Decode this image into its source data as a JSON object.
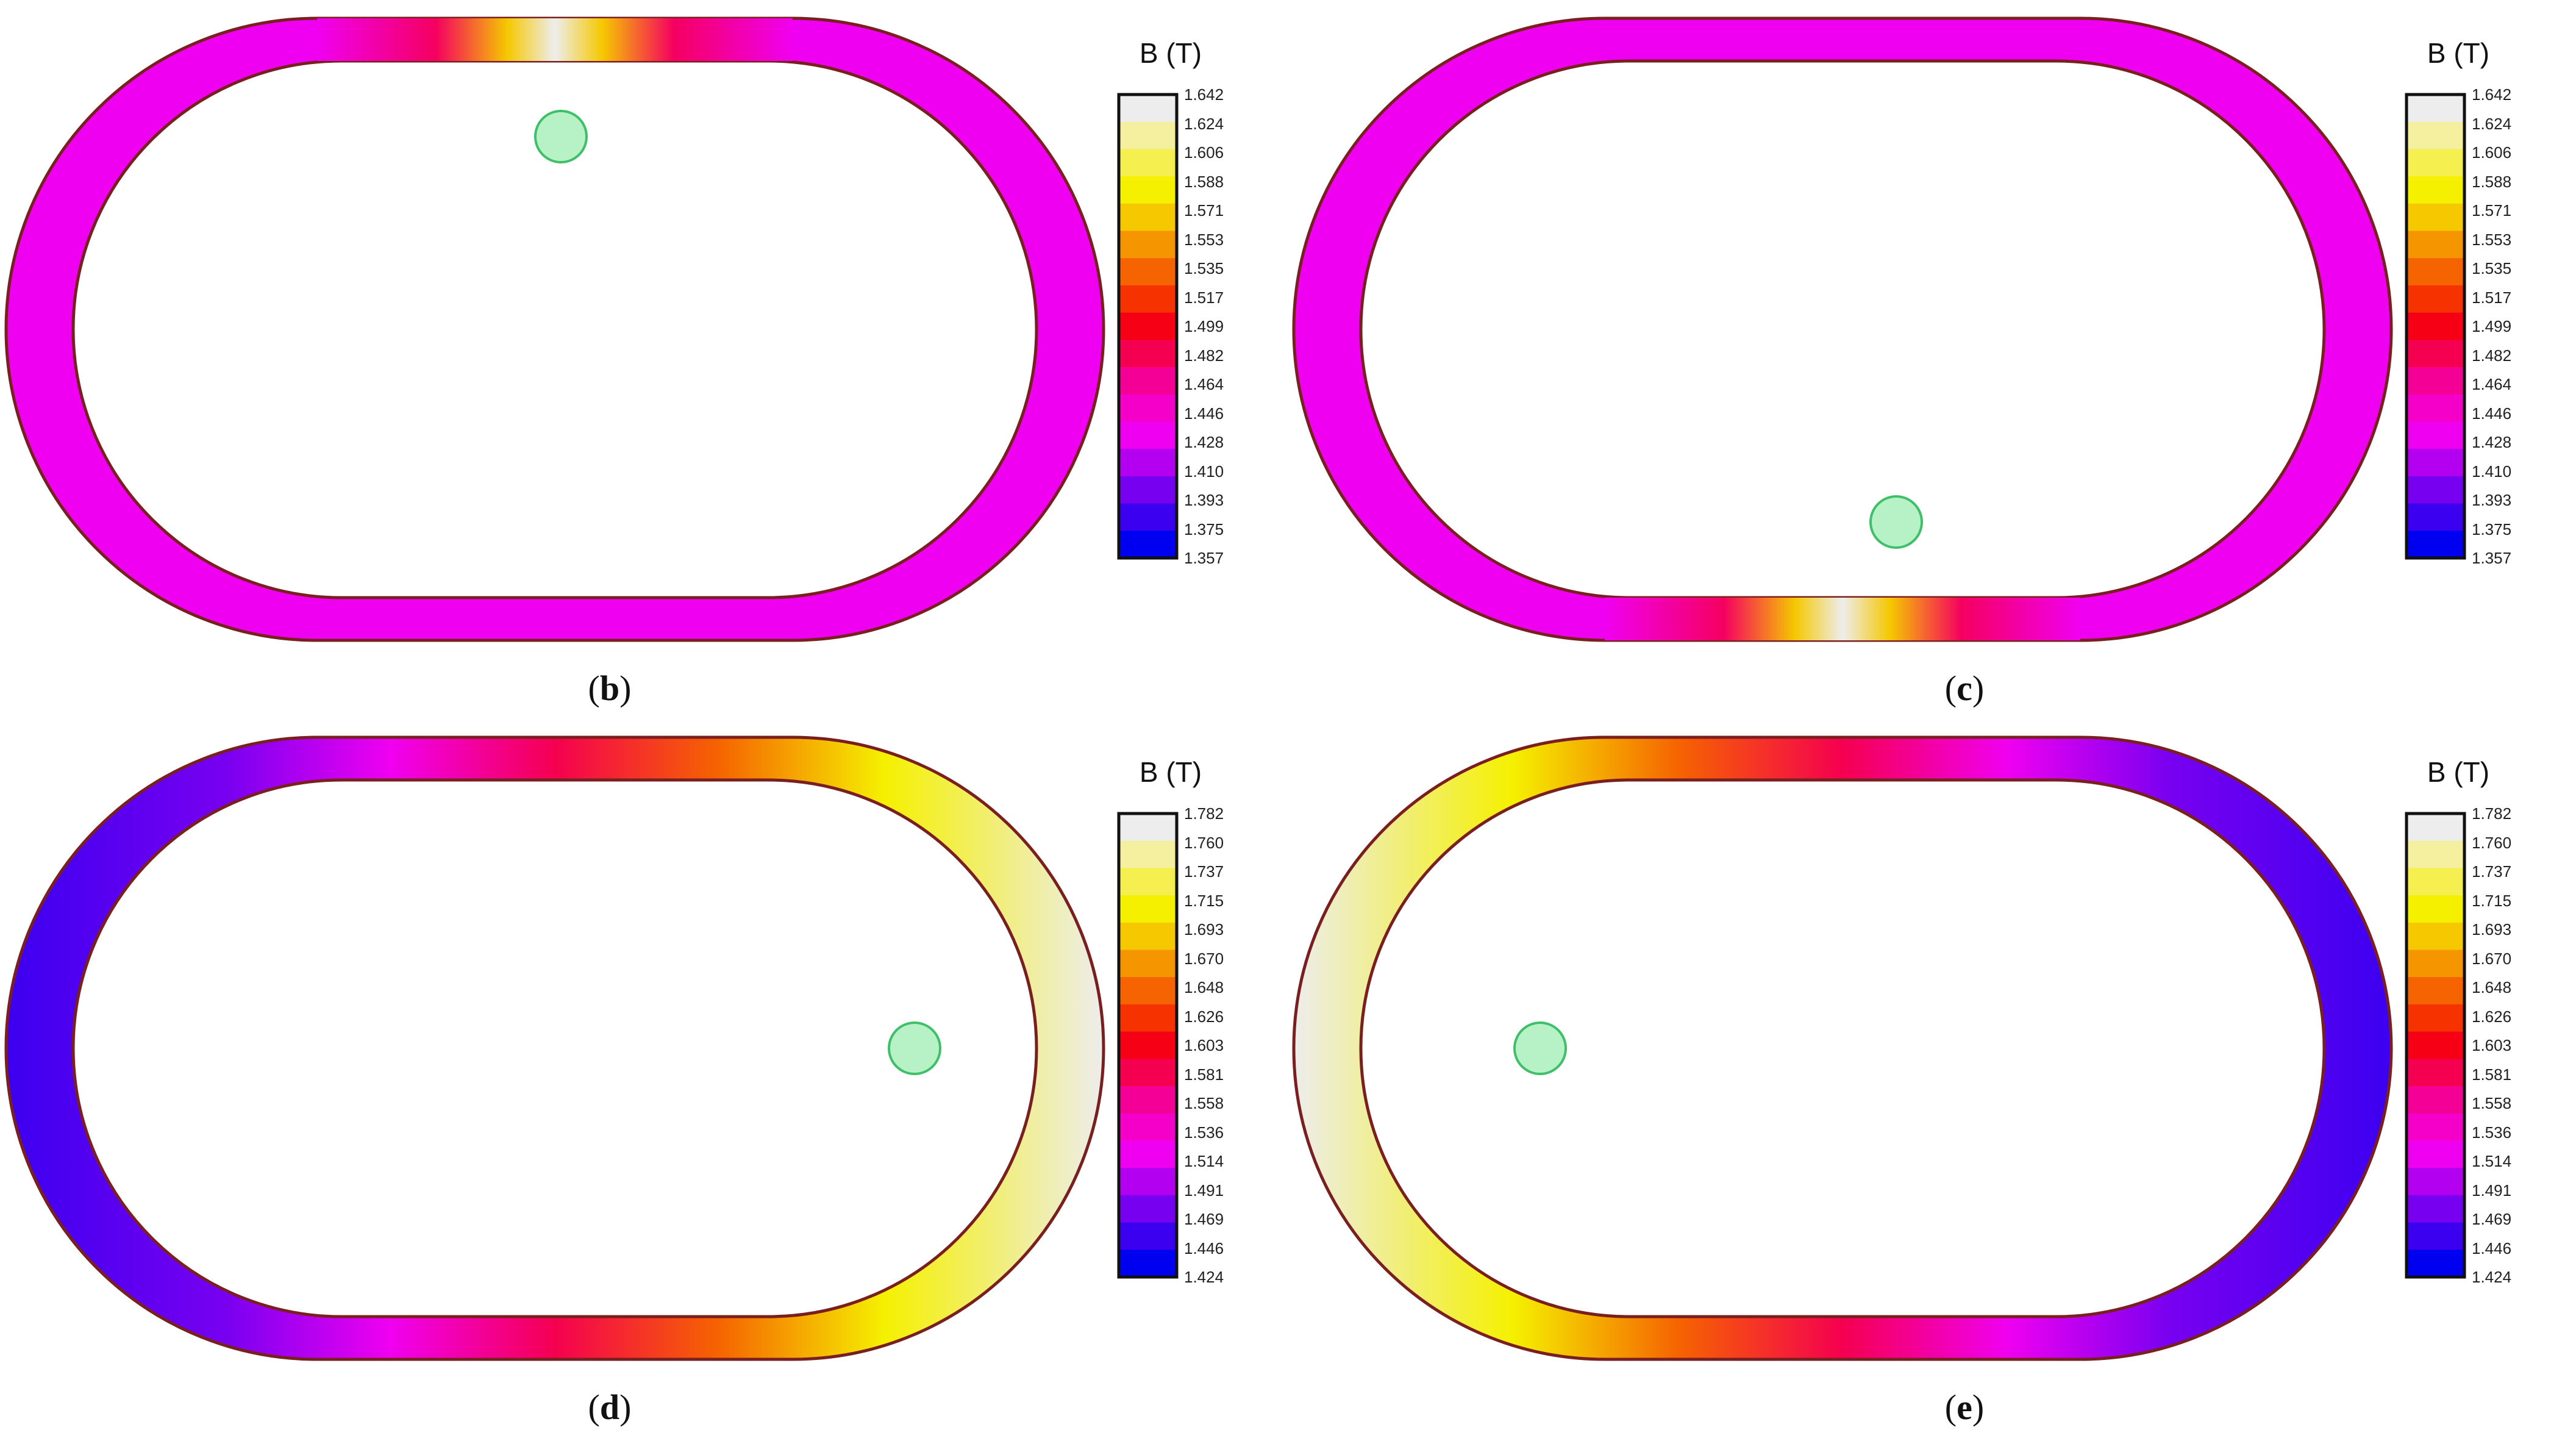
{
  "panels": [
    {
      "id": "b",
      "caption_open": "(",
      "caption_letter": "b",
      "caption_close": ")",
      "colorbar": {
        "title": "B (T)",
        "ticks": [
          "1.642",
          "1.624",
          "1.606",
          "1.588",
          "1.571",
          "1.553",
          "1.535",
          "1.517",
          "1.499",
          "1.482",
          "1.464",
          "1.446",
          "1.428",
          "1.410",
          "1.393",
          "1.375",
          "1.357"
        ]
      },
      "marker_position": "upper-center",
      "field_pattern": "peak at top straight section, bottom uniform"
    },
    {
      "id": "c",
      "caption_open": "(",
      "caption_letter": "c",
      "caption_close": ")",
      "colorbar": {
        "title": "B (T)",
        "ticks": [
          "1.642",
          "1.624",
          "1.606",
          "1.588",
          "1.571",
          "1.553",
          "1.535",
          "1.517",
          "1.499",
          "1.482",
          "1.464",
          "1.446",
          "1.428",
          "1.410",
          "1.393",
          "1.375",
          "1.357"
        ]
      },
      "marker_position": "lower-right",
      "field_pattern": "peak at bottom straight section, top uniform"
    },
    {
      "id": "d",
      "caption_open": "(",
      "caption_letter": "d",
      "caption_close": ")",
      "colorbar": {
        "title": "B (T)",
        "ticks": [
          "1.782",
          "1.760",
          "1.737",
          "1.715",
          "1.693",
          "1.670",
          "1.648",
          "1.626",
          "1.603",
          "1.581",
          "1.558",
          "1.536",
          "1.514",
          "1.491",
          "1.469",
          "1.446",
          "1.424"
        ]
      },
      "marker_position": "right",
      "field_pattern": "gradient low at left to high at right"
    },
    {
      "id": "e",
      "caption_open": "(",
      "caption_letter": "e",
      "caption_close": ")",
      "colorbar": {
        "title": "B (T)",
        "ticks": [
          "1.782",
          "1.760",
          "1.737",
          "1.715",
          "1.693",
          "1.670",
          "1.648",
          "1.626",
          "1.603",
          "1.581",
          "1.558",
          "1.536",
          "1.514",
          "1.491",
          "1.469",
          "1.446",
          "1.424"
        ]
      },
      "marker_position": "left",
      "field_pattern": "gradient high at left to low at right"
    }
  ],
  "colors": {
    "scale": [
      "#ededed",
      "#f5f0a0",
      "#f5f050",
      "#f5f000",
      "#f5c800",
      "#f59600",
      "#f56400",
      "#f53200",
      "#f50014",
      "#f50050",
      "#f50096",
      "#f500c8",
      "#f000f0",
      "#b400f0",
      "#7800f0",
      "#3c00f0",
      "#0000f0"
    ],
    "marker_fill": "#b6f2c6",
    "marker_stroke": "#3fbf6a",
    "outline": "#7a1f1f"
  }
}
